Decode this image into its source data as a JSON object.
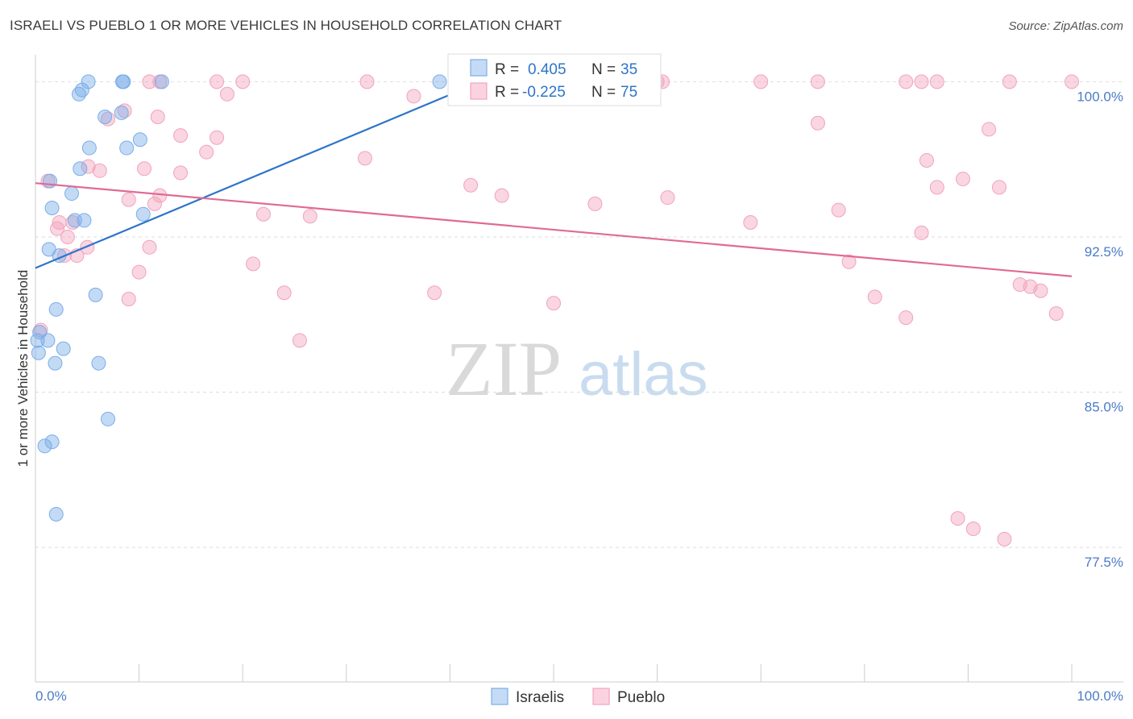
{
  "title": "ISRAELI VS PUEBLO 1 OR MORE VEHICLES IN HOUSEHOLD CORRELATION CHART",
  "source": "Source: ZipAtlas.com",
  "watermark": {
    "zip": "ZIP",
    "atlas": "atlas"
  },
  "colors": {
    "israelis": "#7aaee8",
    "israelis_line": "#2e74c9",
    "pueblo": "#f2a3bd",
    "pueblo_line": "#e06a96",
    "tick": "#4a7cc7",
    "grid": "#dddddd"
  },
  "stats": {
    "r_label": "R =",
    "n_label": "N =",
    "israelis": {
      "r": "0.405",
      "n": "35"
    },
    "pueblo": {
      "r": "-0.225",
      "n": "75"
    }
  },
  "chart_data": {
    "type": "scatter",
    "title": "ISRAELI VS PUEBLO 1 OR MORE VEHICLES IN HOUSEHOLD CORRELATION CHART",
    "xlabel": "",
    "ylabel": "1 or more Vehicles in Household",
    "xlim": [
      0,
      100
    ],
    "ylim": [
      71.0,
      101.3
    ],
    "x_tick_labels": [
      "0.0%",
      "100.0%"
    ],
    "y_ticks": [
      77.5,
      85.0,
      92.5,
      100.0
    ],
    "y_tick_labels": [
      "77.5%",
      "85.0%",
      "92.5%",
      "100.0%"
    ],
    "grid": true,
    "legend_position": "bottom-center",
    "series": [
      {
        "name": "Israelis",
        "x": [
          5.1,
          8.4,
          8.5,
          39.0,
          43.5,
          4.2,
          4.5,
          8.3,
          6.7,
          8.8,
          10.1,
          5.2,
          4.3,
          1.4,
          3.5,
          1.6,
          4.7,
          3.8,
          10.4,
          1.3,
          2.3,
          2.0,
          0.2,
          0.4,
          1.2,
          2.7,
          1.9,
          6.1,
          7.0,
          1.6,
          0.9,
          2.0,
          5.8,
          0.3,
          12.2
        ],
        "y": [
          100.0,
          100.0,
          100.0,
          100.0,
          100.0,
          99.4,
          99.6,
          98.5,
          98.3,
          96.8,
          97.2,
          96.8,
          95.8,
          95.2,
          94.6,
          93.9,
          93.3,
          93.3,
          93.6,
          91.9,
          91.6,
          89.0,
          87.5,
          87.9,
          87.5,
          87.1,
          86.4,
          86.4,
          83.7,
          82.6,
          82.4,
          79.1,
          89.7,
          86.9,
          100.0
        ]
      },
      {
        "name": "Pueblo",
        "x": [
          11.0,
          12.0,
          17.5,
          20.0,
          32.0,
          36.5,
          51.0,
          59.0,
          60.0,
          59.5,
          60.5,
          70.0,
          75.5,
          84.0,
          85.5,
          87.0,
          94.0,
          100.0,
          11.8,
          14.0,
          16.5,
          17.5,
          18.5,
          22.0,
          8.6,
          7.0,
          5.1,
          6.2,
          9.0,
          10.5,
          11.5,
          12.0,
          14.0,
          0.5,
          1.2,
          2.1,
          3.1,
          4.0,
          5.0,
          2.3,
          3.6,
          2.8,
          9.0,
          10.0,
          11.0,
          21.0,
          24.0,
          25.5,
          26.5,
          31.8,
          38.5,
          42.0,
          45.0,
          50.0,
          54.0,
          61.0,
          69.0,
          75.5,
          77.5,
          78.5,
          81.0,
          84.0,
          86.0,
          89.5,
          92.0,
          93.0,
          95.0,
          96.0,
          97.0,
          98.5,
          85.5,
          87.0,
          89.0,
          90.5,
          93.5
        ],
        "y": [
          100.0,
          100.0,
          100.0,
          100.0,
          100.0,
          99.3,
          100.0,
          100.0,
          100.0,
          99.3,
          100.0,
          100.0,
          100.0,
          100.0,
          100.0,
          100.0,
          100.0,
          100.0,
          98.3,
          97.4,
          96.6,
          97.3,
          99.4,
          93.6,
          98.6,
          98.2,
          95.9,
          95.7,
          94.3,
          95.8,
          94.1,
          94.5,
          95.6,
          88.0,
          95.2,
          92.9,
          92.5,
          91.6,
          92.0,
          93.2,
          93.2,
          91.6,
          89.5,
          90.8,
          92.0,
          91.2,
          89.8,
          87.5,
          93.5,
          96.3,
          89.8,
          95.0,
          94.5,
          89.3,
          94.1,
          94.4,
          93.2,
          98.0,
          93.8,
          91.3,
          89.6,
          88.6,
          96.2,
          95.3,
          97.7,
          94.9,
          90.2,
          90.1,
          89.9,
          88.8,
          92.7,
          94.9,
          78.9,
          78.4,
          77.9
        ]
      }
    ],
    "trendlines": [
      {
        "series": "Israelis",
        "x": [
          0,
          43.0
        ],
        "y": [
          91.0,
          100.0
        ]
      },
      {
        "series": "Pueblo",
        "x": [
          0,
          100
        ],
        "y": [
          95.1,
          90.6
        ]
      }
    ]
  },
  "legend": {
    "items": [
      {
        "label": "Israelis"
      },
      {
        "label": "Pueblo"
      }
    ]
  }
}
